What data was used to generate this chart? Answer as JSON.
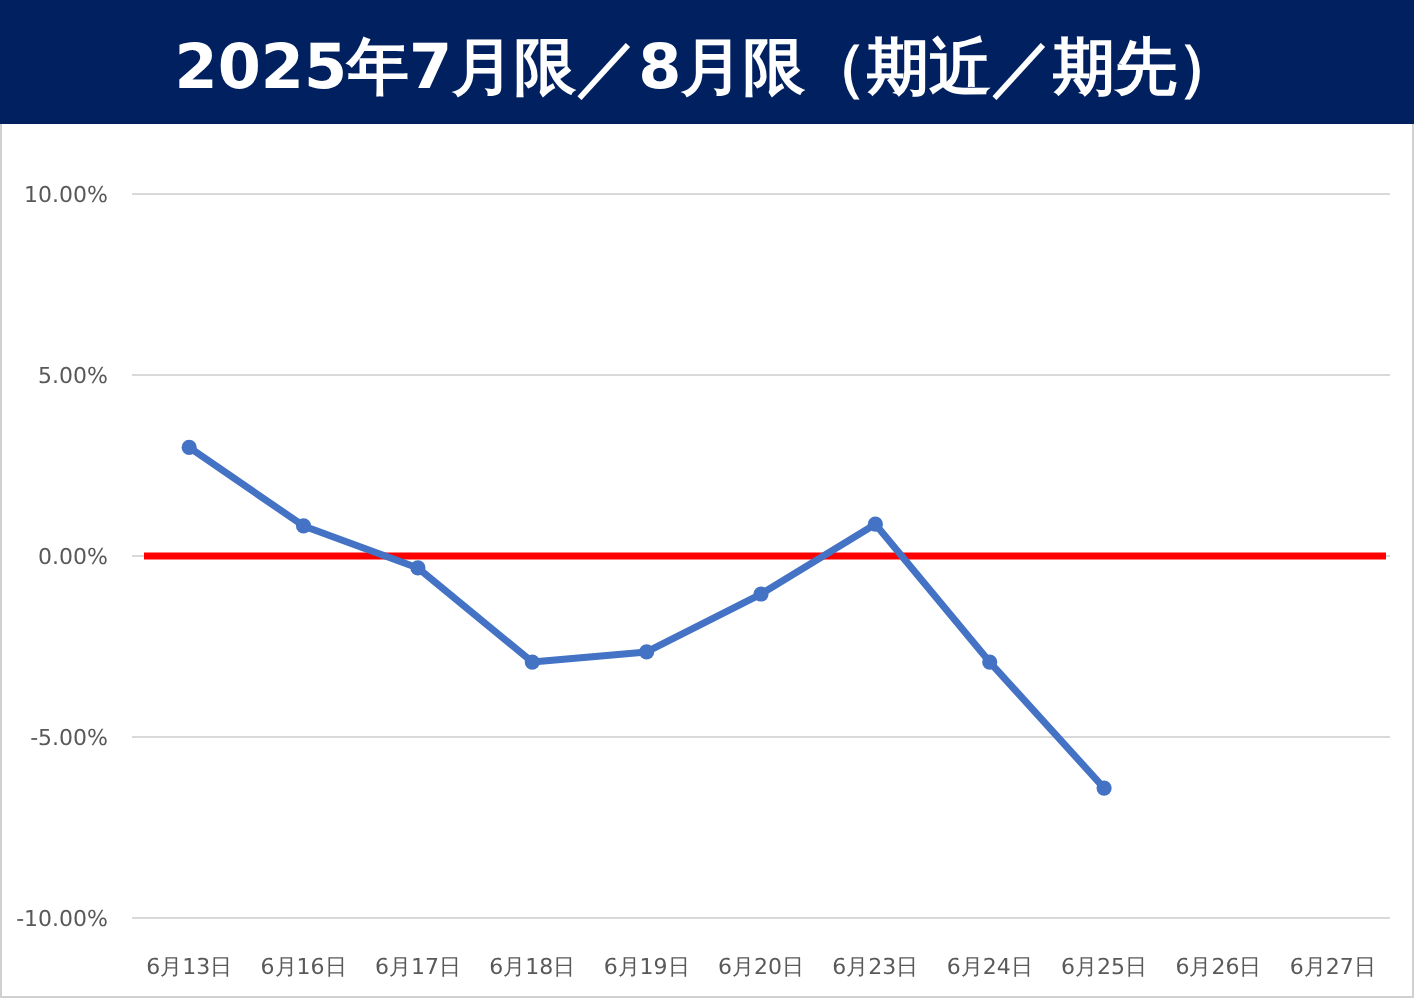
{
  "chart_data": {
    "type": "line",
    "title": "2025年7月限／8月限（期近／期先）",
    "categories": [
      "6月13日",
      "6月16日",
      "6月17日",
      "6月18日",
      "6月19日",
      "6月20日",
      "6月23日",
      "6月24日",
      "6月25日",
      "6月26日",
      "6月27日"
    ],
    "series": [
      {
        "color": "#4472c4",
        "values": [
          3.0,
          0.83,
          -0.33,
          -2.93,
          -2.65,
          -1.05,
          0.88,
          -2.93,
          -6.41,
          null,
          null
        ]
      }
    ],
    "ylim": [
      -10,
      10
    ],
    "yticks": [
      {
        "value": -10,
        "label": "-10.00%"
      },
      {
        "value": -5,
        "label": "-5.00%"
      },
      {
        "value": 0,
        "label": "0.00%"
      },
      {
        "value": 5,
        "label": "5.00%"
      },
      {
        "value": 10,
        "label": "10.00%"
      }
    ],
    "grid": "y",
    "marker": "circle",
    "line_style": "solid",
    "ref_lines": [
      {
        "axis": "y",
        "value": 0,
        "color": "#ff0000"
      }
    ]
  }
}
